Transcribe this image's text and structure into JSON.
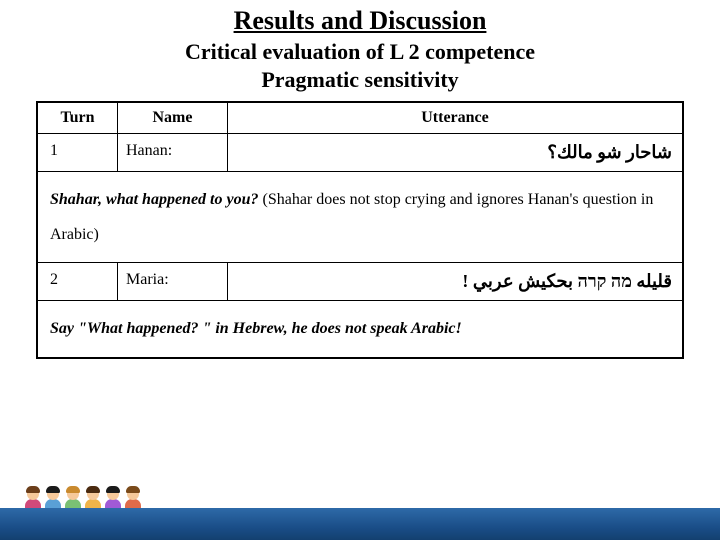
{
  "title": {
    "main": "Results and Discussion",
    "sub1": "Critical evaluation of L 2 competence",
    "sub2": "Pragmatic sensitivity"
  },
  "table": {
    "headers": {
      "turn": "Turn",
      "name": "Name",
      "utterance": "Utterance"
    },
    "rows": [
      {
        "turn": "1",
        "name": "Hanan:",
        "utterance_rtl": "شاحار شو مالك؟",
        "context_bold_italic": "Shahar, what happened to you?",
        "context_plain": " (Shahar does not stop crying and ignores Hanan's question in Arabic)"
      },
      {
        "turn": "2",
        "name": "Maria:",
        "utterance_rtl": "قليله מה קרה بحكيش عربي !",
        "context_bold_italic": "Say \"What happened? \" in Hebrew, he does not speak Arabic!",
        "context_plain": ""
      }
    ]
  },
  "kids_colors": [
    {
      "hair": "#6b3e1a",
      "body": "#d14a7a"
    },
    {
      "hair": "#1a1a1a",
      "body": "#5aa0d6"
    },
    {
      "hair": "#c98a2e",
      "body": "#7ac074"
    },
    {
      "hair": "#4a2a10",
      "body": "#f0b44a"
    },
    {
      "hair": "#1a1a1a",
      "body": "#a05ad6"
    },
    {
      "hair": "#7a4a1a",
      "body": "#e06b4a"
    }
  ],
  "footer_gradient": {
    "top": "#2e6aa8",
    "bottom": "#13406f"
  }
}
